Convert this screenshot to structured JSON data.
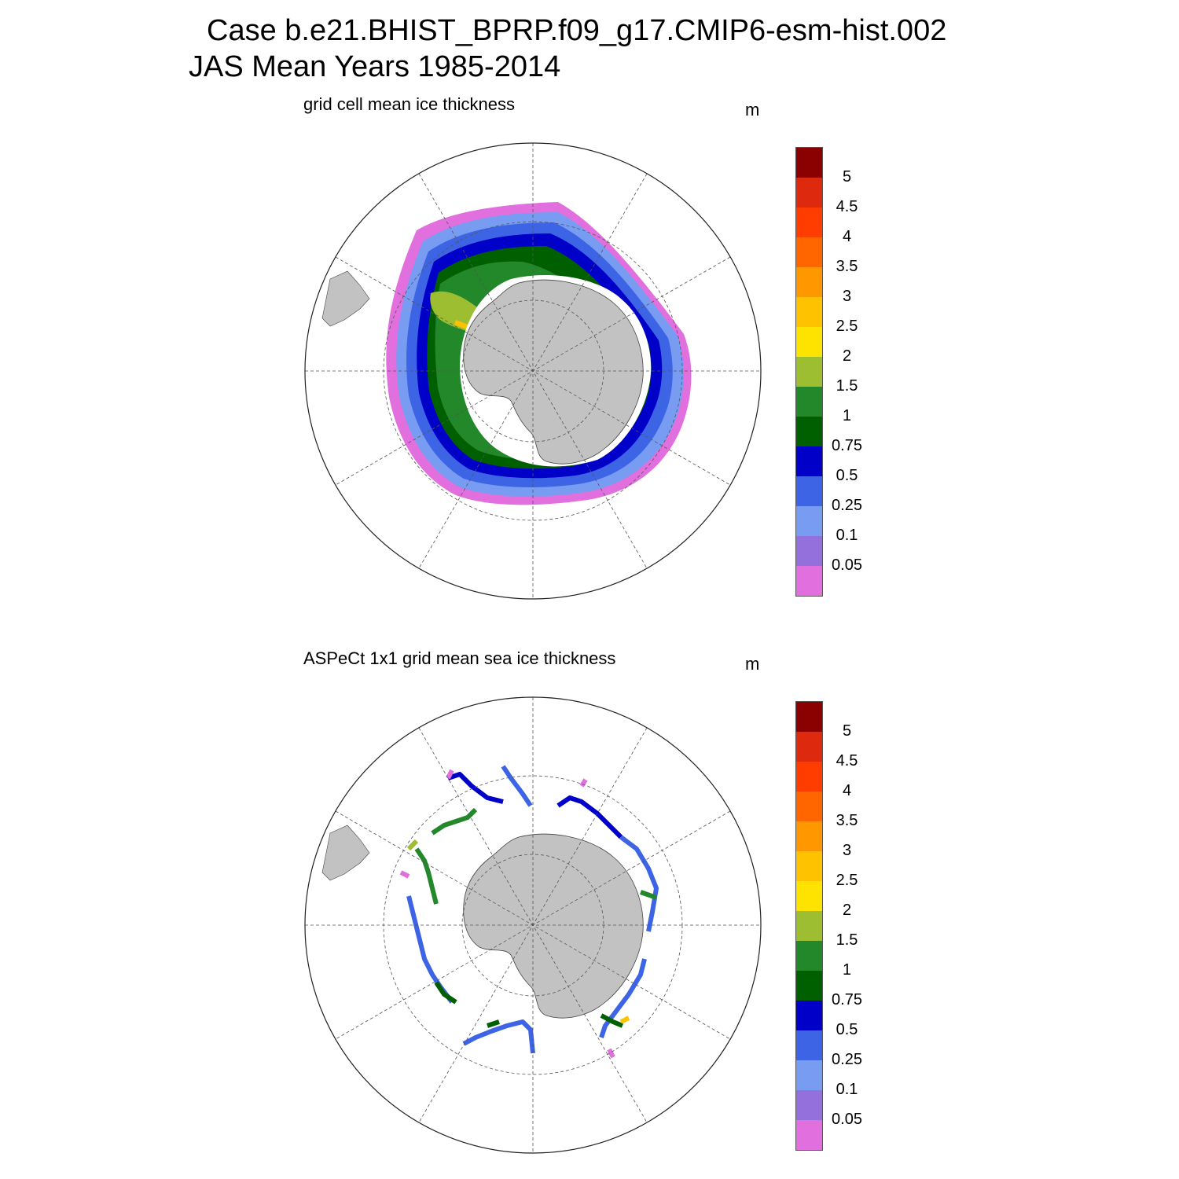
{
  "header": {
    "case_line": "Case b.e21.BHIST_BPRP.f09_g17.CMIP6-esm-hist.002",
    "period_line": "JAS Mean   Years 1985-2014"
  },
  "panels": [
    {
      "subtitle": "grid cell mean ice thickness",
      "units": "m"
    },
    {
      "subtitle": "ASPeCt 1x1 grid mean sea ice thickness",
      "units": "m"
    }
  ],
  "colorbar": {
    "labels": [
      "5",
      "4.5",
      "4",
      "3.5",
      "3",
      "2.5",
      "2",
      "1.5",
      "1",
      "0.75",
      "0.5",
      "0.25",
      "0.1",
      "0.05"
    ],
    "colors": [
      "#8b0000",
      "#dd2a0f",
      "#ff3d00",
      "#ff6600",
      "#ff9800",
      "#ffc200",
      "#ffe300",
      "#9dbe30",
      "#22882a",
      "#006000",
      "#0000c8",
      "#3d64e4",
      "#779cf2",
      "#9370db",
      "#e26fde"
    ]
  }
}
